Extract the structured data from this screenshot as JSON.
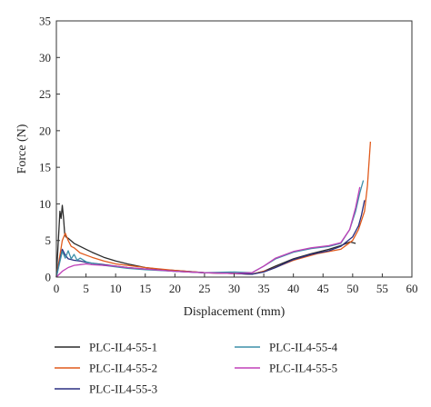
{
  "chart_data": {
    "type": "line",
    "title": "",
    "xlabel": "Displacement (mm)",
    "ylabel": "Force (N)",
    "xlim": [
      0,
      60
    ],
    "ylim": [
      0,
      35
    ],
    "xticks": [
      "0",
      "5",
      "10",
      "15",
      "20",
      "25",
      "30",
      "35",
      "40",
      "45",
      "50",
      "55",
      "60"
    ],
    "yticks": [
      "0",
      "5",
      "10",
      "15",
      "20",
      "25",
      "30",
      "35"
    ],
    "grid": false,
    "legend_position": "bottom",
    "series": [
      {
        "name": "PLC-IL4-55-1",
        "color": "#2b2b2b",
        "x": [
          0,
          0.2,
          0.4,
          0.6,
          0.8,
          1.0,
          1.2,
          1.4,
          1.6,
          2,
          3,
          4,
          5,
          6,
          8,
          10,
          12,
          15,
          18,
          20,
          25,
          30,
          33,
          35,
          37,
          40,
          43,
          46,
          48,
          49.5,
          50.5
        ],
        "y": [
          0,
          3,
          6,
          9,
          8,
          9.8,
          8.2,
          6,
          5.5,
          5.3,
          4.6,
          4.2,
          3.8,
          3.4,
          2.7,
          2.2,
          1.8,
          1.3,
          1.0,
          0.9,
          0.6,
          0.5,
          0.4,
          0.8,
          1.5,
          2.5,
          3.2,
          3.8,
          4.3,
          4.8,
          4.6
        ]
      },
      {
        "name": "PLC-IL4-55-2",
        "color": "#e05a1c",
        "x": [
          0,
          0.5,
          1.0,
          1.5,
          2,
          2.5,
          3,
          4,
          5,
          6,
          8,
          10,
          12,
          15,
          20,
          25,
          30,
          33,
          36,
          40,
          44,
          48,
          50,
          51,
          52,
          52.5,
          53
        ],
        "y": [
          0,
          2.5,
          5.0,
          6.0,
          5.0,
          4.2,
          4.0,
          3.3,
          3.0,
          2.7,
          2.2,
          1.8,
          1.6,
          1.3,
          0.9,
          0.6,
          0.5,
          0.4,
          1.0,
          2.3,
          3.2,
          3.8,
          5.0,
          6.5,
          9.0,
          12.5,
          18.5
        ]
      },
      {
        "name": "PLC-IL4-55-3",
        "color": "#2a2f80",
        "x": [
          0,
          0.5,
          1.0,
          1.5,
          2,
          3,
          4,
          5,
          6,
          8,
          10,
          12,
          15,
          20,
          25,
          30,
          33,
          35,
          37,
          40,
          43,
          46,
          48,
          50,
          51,
          51.5,
          52
        ],
        "y": [
          0,
          2.0,
          3.8,
          3.0,
          2.5,
          2.3,
          2.2,
          2.0,
          1.9,
          1.7,
          1.5,
          1.3,
          1.1,
          0.8,
          0.6,
          0.5,
          0.4,
          0.7,
          1.3,
          2.4,
          3.1,
          3.6,
          4.2,
          5.5,
          7.0,
          8.5,
          10.5
        ]
      },
      {
        "name": "PLC-IL4-55-4",
        "color": "#3d8fa8",
        "x": [
          0,
          0.5,
          1.0,
          1.5,
          2,
          2.5,
          3,
          3.5,
          4,
          5,
          6,
          8,
          10,
          12,
          15,
          20,
          25,
          30,
          33,
          35,
          37,
          40,
          43,
          46,
          48,
          49.5,
          50.5,
          51.2,
          51.8
        ],
        "y": [
          0,
          1.8,
          3.5,
          2.6,
          3.6,
          2.5,
          3.1,
          2.3,
          2.6,
          2.1,
          1.9,
          1.6,
          1.4,
          1.2,
          1.0,
          0.8,
          0.6,
          0.7,
          0.6,
          1.5,
          2.5,
          3.4,
          3.9,
          4.2,
          4.6,
          6.5,
          9.0,
          11.5,
          13.2
        ]
      },
      {
        "name": "PLC-IL4-55-5",
        "color": "#c040b8",
        "x": [
          0,
          1,
          2,
          3,
          4,
          5,
          6,
          8,
          10,
          12,
          15,
          20,
          25,
          30,
          33,
          35,
          37,
          40,
          43,
          46,
          48,
          49.5,
          50.5,
          51.2
        ],
        "y": [
          0,
          0.8,
          1.3,
          1.6,
          1.7,
          1.8,
          1.7,
          1.6,
          1.5,
          1.3,
          1.1,
          0.8,
          0.6,
          0.5,
          0.6,
          1.5,
          2.6,
          3.5,
          4.0,
          4.3,
          4.7,
          6.5,
          9.5,
          12.3
        ]
      }
    ]
  }
}
